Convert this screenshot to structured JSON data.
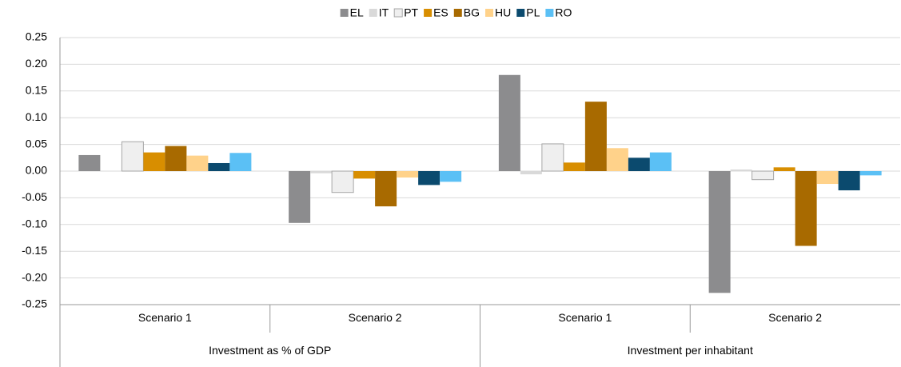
{
  "chart_data": {
    "type": "bar",
    "categories": [
      "Scenario 1",
      "Scenario 2",
      "Scenario 1",
      "Scenario 2"
    ],
    "category_groups": [
      "Investment as % of GDP",
      "Investment per inhabitant"
    ],
    "series": [
      {
        "name": "EL",
        "color": "#8c8c8e",
        "values": [
          0.03,
          -0.097,
          0.18,
          -0.228
        ]
      },
      {
        "name": "IT",
        "color": "#d9d9d9",
        "values": [
          0.0,
          -0.004,
          -0.006,
          0.003
        ]
      },
      {
        "name": "PT",
        "color": "#efefef",
        "values": [
          0.055,
          -0.04,
          0.051,
          -0.016
        ]
      },
      {
        "name": "ES",
        "color": "#d88e00",
        "values": [
          0.035,
          -0.014,
          0.016,
          0.007
        ]
      },
      {
        "name": "BG",
        "color": "#a86a00",
        "values": [
          0.047,
          -0.066,
          0.13,
          -0.14
        ]
      },
      {
        "name": "HU",
        "color": "#ffd28a",
        "values": [
          0.029,
          -0.012,
          0.043,
          -0.024
        ]
      },
      {
        "name": "PL",
        "color": "#0b4a6e",
        "values": [
          0.015,
          -0.026,
          0.025,
          -0.036
        ]
      },
      {
        "name": "RO",
        "color": "#5bc0f5",
        "values": [
          0.034,
          -0.02,
          0.035,
          -0.008
        ]
      }
    ],
    "ylim": [
      -0.25,
      0.25
    ],
    "yticks": [
      -0.25,
      {
        "value": -0.2,
        "label": "-0.20"
      },
      -0.15,
      {
        "value": -0.1,
        "label": "-0.10"
      },
      -0.05,
      {
        "value": 0,
        "label": "0.00"
      },
      0.05,
      {
        "value": 0.1,
        "label": "0.10"
      },
      0.15,
      {
        "value": 0.2,
        "label": "0.20"
      },
      0.25
    ],
    "grid": true,
    "legend": "top"
  }
}
